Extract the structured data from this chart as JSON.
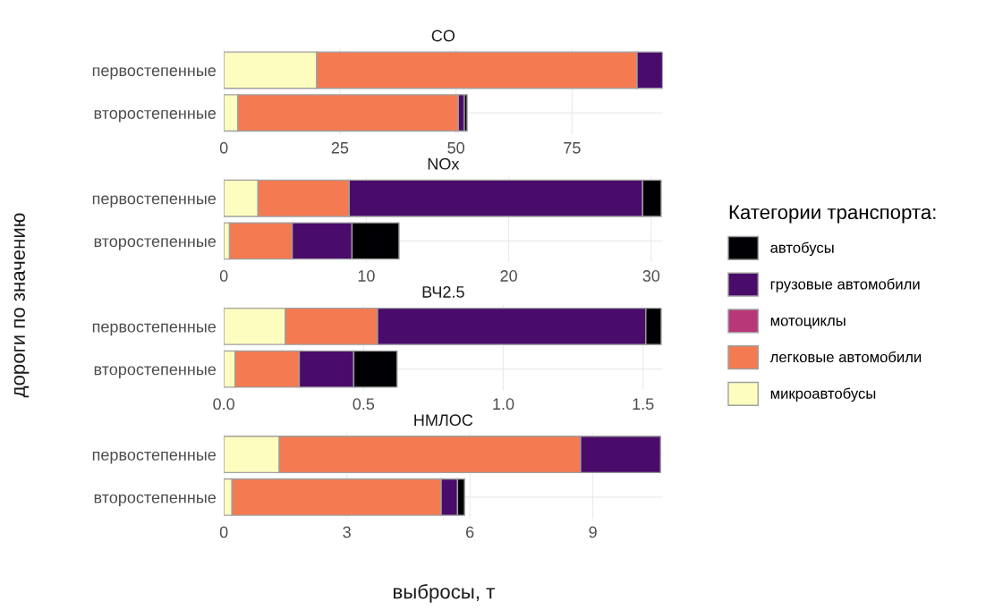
{
  "chart_data": [
    {
      "type": "bar",
      "orientation": "horizontal",
      "stacked": true,
      "title": "CO",
      "ylabel": "дороги по значению",
      "legend": "right",
      "legend_title": "Категории транспорта:",
      "grid": true,
      "categories": [
        "первостепенные",
        "второстепенные"
      ],
      "xlim": [
        0,
        94.5
      ],
      "xticks": [
        0,
        25,
        50,
        75
      ],
      "series": [
        {
          "name": "микроавтобусы",
          "color": "#fcfdbf",
          "values": [
            20,
            3
          ]
        },
        {
          "name": "легковые автомобили",
          "color": "#f47a51",
          "values": [
            69,
            47.5
          ]
        },
        {
          "name": "мотоциклы",
          "color": "#b73779",
          "values": [
            null,
            null
          ]
        },
        {
          "name": "грузовые автомобили",
          "color": "#4a0c6b",
          "values": [
            5.5,
            1.3
          ]
        },
        {
          "name": "автобусы",
          "color": "#000004",
          "values": [
            null,
            0.6
          ]
        }
      ]
    },
    {
      "type": "bar",
      "orientation": "horizontal",
      "stacked": true,
      "title": "NOx",
      "grid": true,
      "categories": [
        "первостепенные",
        "второстепенные"
      ],
      "xlim": [
        0,
        30.8
      ],
      "xticks": [
        0,
        10,
        20,
        30
      ],
      "series": [
        {
          "color": "#fcfdbf",
          "values": [
            2.4,
            0.4
          ]
        },
        {
          "color": "#f47a51",
          "values": [
            6.4,
            4.4
          ]
        },
        {
          "color": "#b73779",
          "values": [
            null,
            null
          ]
        },
        {
          "color": "#4a0c6b",
          "values": [
            20.6,
            4.2
          ]
        },
        {
          "color": "#000004",
          "values": [
            1.3,
            3.3
          ]
        }
      ]
    },
    {
      "type": "bar",
      "orientation": "horizontal",
      "stacked": true,
      "title": "ВЧ2.5",
      "grid": true,
      "categories": [
        "первостепенные",
        "второстепенные"
      ],
      "xlim": [
        0,
        1.57
      ],
      "xticks": [
        {
          "value": 0,
          "label": "0.0"
        },
        0.5,
        {
          "value": 1,
          "label": "1.0"
        },
        1.5
      ],
      "series": [
        {
          "color": "#fcfdbf",
          "values": [
            0.22,
            0.04
          ]
        },
        {
          "color": "#f47a51",
          "values": [
            0.33,
            0.23
          ]
        },
        {
          "color": "#b73779",
          "values": [
            null,
            null
          ]
        },
        {
          "color": "#4a0c6b",
          "values": [
            0.96,
            0.195
          ]
        },
        {
          "color": "#000004",
          "values": [
            0.055,
            0.155
          ]
        }
      ]
    },
    {
      "type": "bar",
      "orientation": "horizontal",
      "stacked": true,
      "title": "НМЛОС",
      "xlabel": "выбросы, т",
      "grid": true,
      "categories": [
        "первостепенные",
        "второстепенные"
      ],
      "xlim": [
        0,
        10.7
      ],
      "xticks": [
        0,
        3,
        6,
        9
      ],
      "series": [
        {
          "color": "#fcfdbf",
          "values": [
            1.35,
            0.2
          ]
        },
        {
          "color": "#f47a51",
          "values": [
            7.35,
            5.1
          ]
        },
        {
          "color": "#b73779",
          "values": [
            null,
            null
          ]
        },
        {
          "color": "#4a0c6b",
          "values": [
            1.95,
            0.4
          ]
        },
        {
          "color": "#000004",
          "values": [
            null,
            0.17
          ]
        }
      ]
    }
  ]
}
